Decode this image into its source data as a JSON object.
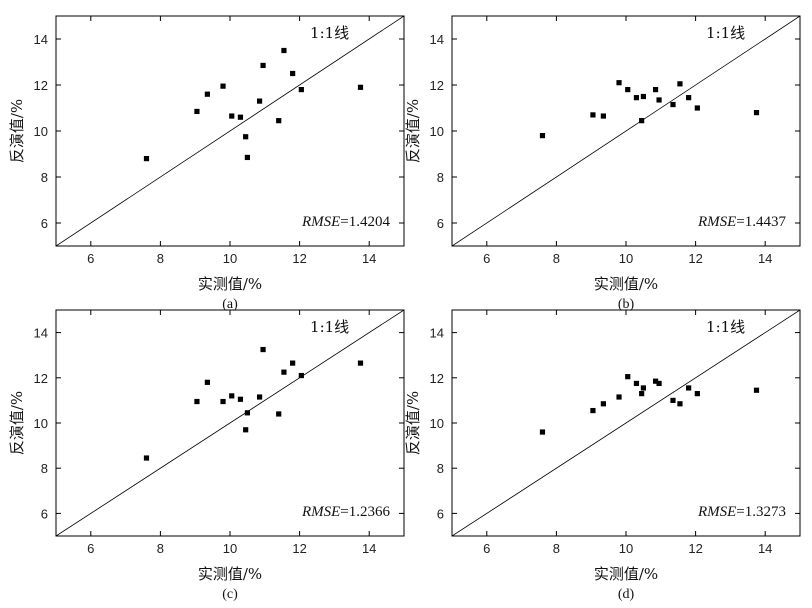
{
  "colors": {
    "background": "#ffffff",
    "axis": "#000000",
    "marker": "#000000",
    "reference_line": "#000000"
  },
  "chart_data": [
    {
      "type": "scatter",
      "panel_label": "(a)",
      "xlabel": "实测值/%",
      "ylabel": "反演值/%",
      "xlim": [
        5,
        15
      ],
      "ylim": [
        5,
        15
      ],
      "xticks": [
        6,
        8,
        10,
        12,
        14
      ],
      "yticks": [
        6,
        8,
        10,
        12,
        14
      ],
      "reference_line_label": "1:1线",
      "metric_name": "RMSE",
      "metric_value": "=1.4204",
      "points": [
        {
          "x": 7.6,
          "y": 8.8
        },
        {
          "x": 9.05,
          "y": 10.85
        },
        {
          "x": 9.35,
          "y": 11.6
        },
        {
          "x": 9.8,
          "y": 11.95
        },
        {
          "x": 10.05,
          "y": 10.65
        },
        {
          "x": 10.3,
          "y": 10.6
        },
        {
          "x": 10.45,
          "y": 9.75
        },
        {
          "x": 10.5,
          "y": 8.85
        },
        {
          "x": 10.85,
          "y": 11.3
        },
        {
          "x": 10.95,
          "y": 12.85
        },
        {
          "x": 11.4,
          "y": 10.45
        },
        {
          "x": 11.55,
          "y": 13.5
        },
        {
          "x": 11.8,
          "y": 12.5
        },
        {
          "x": 12.05,
          "y": 11.8
        },
        {
          "x": 13.75,
          "y": 11.9
        }
      ]
    },
    {
      "type": "scatter",
      "panel_label": "(b)",
      "xlabel": "实测值/%",
      "ylabel": "反演值/%",
      "xlim": [
        5,
        15
      ],
      "ylim": [
        5,
        15
      ],
      "xticks": [
        6,
        8,
        10,
        12,
        14
      ],
      "yticks": [
        6,
        8,
        10,
        12,
        14
      ],
      "reference_line_label": "1:1线",
      "metric_name": "RMSE",
      "metric_value": "=1.4437",
      "points": [
        {
          "x": 7.6,
          "y": 9.8
        },
        {
          "x": 9.05,
          "y": 10.7
        },
        {
          "x": 9.35,
          "y": 10.65
        },
        {
          "x": 9.8,
          "y": 12.1
        },
        {
          "x": 10.05,
          "y": 11.8
        },
        {
          "x": 10.3,
          "y": 11.45
        },
        {
          "x": 10.45,
          "y": 10.45
        },
        {
          "x": 10.5,
          "y": 11.5
        },
        {
          "x": 10.85,
          "y": 11.8
        },
        {
          "x": 10.95,
          "y": 11.35
        },
        {
          "x": 11.35,
          "y": 11.15
        },
        {
          "x": 11.55,
          "y": 12.05
        },
        {
          "x": 11.8,
          "y": 11.45
        },
        {
          "x": 12.05,
          "y": 11.0
        },
        {
          "x": 13.75,
          "y": 10.8
        }
      ]
    },
    {
      "type": "scatter",
      "panel_label": "(c)",
      "xlabel": "实测值/%",
      "ylabel": "反演值/%",
      "xlim": [
        5,
        15
      ],
      "ylim": [
        5,
        15
      ],
      "xticks": [
        6,
        8,
        10,
        12,
        14
      ],
      "yticks": [
        6,
        8,
        10,
        12,
        14
      ],
      "reference_line_label": "1:1线",
      "metric_name": "RMSE",
      "metric_value": "=1.2366",
      "points": [
        {
          "x": 7.6,
          "y": 8.45
        },
        {
          "x": 9.05,
          "y": 10.95
        },
        {
          "x": 9.35,
          "y": 11.8
        },
        {
          "x": 9.8,
          "y": 10.95
        },
        {
          "x": 10.05,
          "y": 11.2
        },
        {
          "x": 10.3,
          "y": 11.05
        },
        {
          "x": 10.45,
          "y": 9.7
        },
        {
          "x": 10.5,
          "y": 10.45
        },
        {
          "x": 10.85,
          "y": 11.15
        },
        {
          "x": 10.95,
          "y": 13.25
        },
        {
          "x": 11.4,
          "y": 10.4
        },
        {
          "x": 11.55,
          "y": 12.25
        },
        {
          "x": 11.8,
          "y": 12.65
        },
        {
          "x": 12.05,
          "y": 12.1
        },
        {
          "x": 13.75,
          "y": 12.65
        }
      ]
    },
    {
      "type": "scatter",
      "panel_label": "(d)",
      "xlabel": "实测值/%",
      "ylabel": "反演值/%",
      "xlim": [
        5,
        15
      ],
      "ylim": [
        5,
        15
      ],
      "xticks": [
        6,
        8,
        10,
        12,
        14
      ],
      "yticks": [
        6,
        8,
        10,
        12,
        14
      ],
      "reference_line_label": "1:1线",
      "metric_name": "RMSE",
      "metric_value": "=1.3273",
      "points": [
        {
          "x": 7.6,
          "y": 9.6
        },
        {
          "x": 9.05,
          "y": 10.55
        },
        {
          "x": 9.35,
          "y": 10.85
        },
        {
          "x": 9.8,
          "y": 11.15
        },
        {
          "x": 10.05,
          "y": 12.05
        },
        {
          "x": 10.3,
          "y": 11.75
        },
        {
          "x": 10.45,
          "y": 11.3
        },
        {
          "x": 10.5,
          "y": 11.55
        },
        {
          "x": 10.85,
          "y": 11.85
        },
        {
          "x": 10.95,
          "y": 11.75
        },
        {
          "x": 11.35,
          "y": 11.0
        },
        {
          "x": 11.55,
          "y": 10.85
        },
        {
          "x": 11.8,
          "y": 11.55
        },
        {
          "x": 12.05,
          "y": 11.3
        },
        {
          "x": 13.75,
          "y": 11.45
        }
      ]
    }
  ]
}
